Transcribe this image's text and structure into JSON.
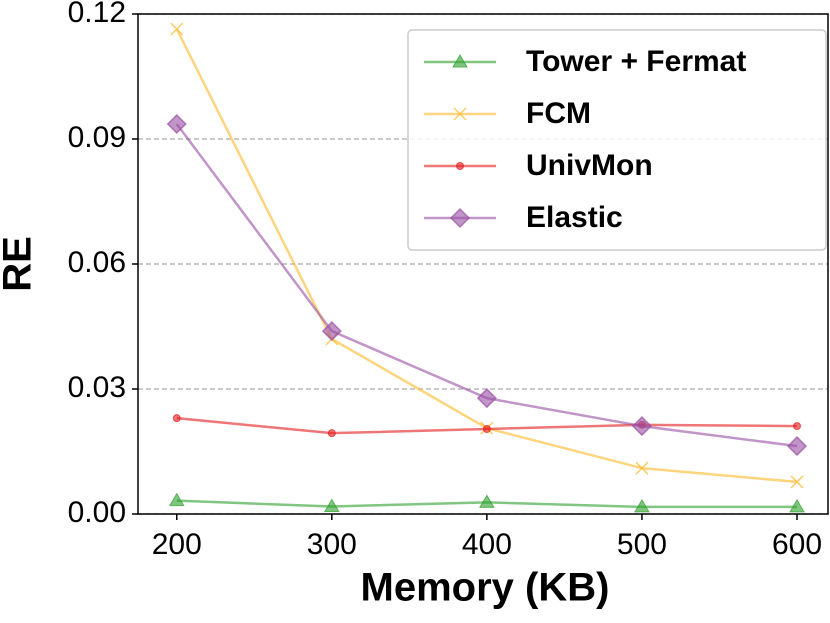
{
  "chart_data": {
    "type": "line",
    "xlabel": "Memory (KB)",
    "ylabel": "RE",
    "x": [
      200,
      300,
      400,
      500,
      600
    ],
    "xlim": [
      175,
      620
    ],
    "xticks": [
      200,
      300,
      400,
      500,
      600
    ],
    "ylim": [
      0,
      0.12
    ],
    "yticks": [
      {
        "value": 0,
        "label": "0.00"
      },
      {
        "value": 0.03,
        "label": "0.03"
      },
      {
        "value": 0.06,
        "label": "0.06"
      },
      {
        "value": 0.09,
        "label": "0.09"
      },
      {
        "value": 0.12,
        "label": "0.12"
      }
    ],
    "grid": true,
    "legend": "upper right",
    "series": [
      {
        "name": "Tower + Fermat",
        "color": "#2ca02c",
        "marker": "triangle",
        "values": [
          0.0032,
          0.0018,
          0.0028,
          0.0017,
          0.0017
        ]
      },
      {
        "name": "FCM",
        "color": "#fdb827",
        "marker": "x",
        "values": [
          0.1164,
          0.042,
          0.0206,
          0.011,
          0.0077
        ]
      },
      {
        "name": "UnivMon",
        "color": "#e41a1c",
        "marker": "dot",
        "values": [
          0.023,
          0.0194,
          0.0204,
          0.0214,
          0.0211
        ]
      },
      {
        "name": "Elastic",
        "color": "#984ea3",
        "marker": "diamond",
        "values": [
          0.0936,
          0.0439,
          0.0278,
          0.0211,
          0.0163
        ]
      }
    ]
  }
}
